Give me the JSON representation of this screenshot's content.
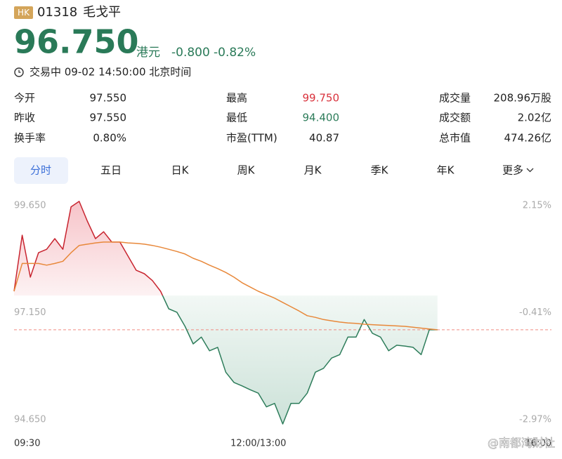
{
  "header": {
    "market": "HK",
    "code": "01318",
    "name": "毛戈平"
  },
  "quote": {
    "price": "96.750",
    "currency": "港元",
    "change": "-0.800",
    "change_pct": "-0.82%",
    "status": "交易中 09-02 14:50:00 北京时间"
  },
  "stats": [
    {
      "label": "今开",
      "value": "97.550"
    },
    {
      "label": "昨收",
      "value": "97.550"
    },
    {
      "label": "换手率",
      "value": "0.80%"
    },
    {
      "label": "最高",
      "value": "99.750",
      "color": "#d9323c"
    },
    {
      "label": "最低",
      "value": "94.400",
      "color": "#2e7d5b"
    },
    {
      "label": "市盈(TTM)",
      "value": "40.87"
    },
    {
      "label": "成交量",
      "value": "208.96万股"
    },
    {
      "label": "成交额",
      "value": "2.02亿"
    },
    {
      "label": "总市值",
      "value": "474.26亿"
    }
  ],
  "tabs": [
    "分时",
    "五日",
    "日K",
    "周K",
    "月K",
    "季K",
    "年K",
    "更多"
  ],
  "active_tab": 0,
  "watermark": "@南都湾财社",
  "chart_data": {
    "type": "line",
    "x": [
      0,
      5,
      10,
      15,
      20,
      25,
      30,
      35,
      40,
      45,
      50,
      55,
      60,
      65,
      70,
      75,
      80,
      85,
      90,
      95,
      100,
      105,
      110,
      115,
      120,
      125,
      130,
      135,
      140,
      145,
      150,
      155,
      160,
      165,
      170,
      175,
      180,
      185,
      190,
      195,
      200,
      205,
      210,
      215,
      220,
      225,
      230,
      235,
      240,
      245,
      250,
      255,
      260
    ],
    "series": [
      {
        "color": "#c8242f",
        "color_below": "#2e7d5b",
        "values": [
          97.65,
          98.96,
          97.98,
          98.55,
          98.63,
          98.88,
          98.63,
          99.62,
          99.75,
          99.29,
          98.88,
          99.04,
          98.8,
          98.8,
          98.47,
          98.14,
          98.06,
          97.9,
          97.65,
          97.24,
          97.16,
          96.83,
          96.42,
          96.58,
          96.26,
          96.34,
          95.76,
          95.52,
          95.44,
          95.35,
          95.27,
          94.95,
          95.03,
          94.55,
          95.03,
          95.03,
          95.27,
          95.76,
          95.85,
          96.09,
          96.17,
          96.58,
          96.58,
          96.99,
          96.67,
          96.58,
          96.26,
          96.39,
          96.37,
          96.34,
          96.17,
          96.75,
          96.75
        ]
      },
      {
        "color": "#e8883a",
        "values": [
          97.65,
          98.3,
          98.3,
          98.3,
          98.26,
          98.3,
          98.35,
          98.55,
          98.72,
          98.75,
          98.78,
          98.8,
          98.8,
          98.8,
          98.78,
          98.77,
          98.75,
          98.72,
          98.68,
          98.63,
          98.58,
          98.52,
          98.42,
          98.35,
          98.26,
          98.18,
          98.09,
          97.98,
          97.85,
          97.75,
          97.65,
          97.57,
          97.49,
          97.39,
          97.29,
          97.19,
          97.08,
          97.04,
          96.99,
          96.96,
          96.93,
          96.91,
          96.9,
          96.88,
          96.87,
          96.86,
          96.85,
          96.84,
          96.83,
          96.81,
          96.79,
          96.77,
          96.75
        ]
      }
    ],
    "xlim": [
      0,
      330
    ],
    "xticks": [
      {
        "value": 0,
        "label": "09:30"
      },
      {
        "value": 150,
        "label": "12:00/13:00"
      },
      {
        "value": 330,
        "label": "16:00"
      }
    ],
    "ylim": [
      94.65,
      99.65
    ],
    "yticks": [
      {
        "value": 94.65,
        "label": "94.650"
      },
      {
        "value": 97.15,
        "label": "97.150"
      },
      {
        "value": 99.65,
        "label": "99.650"
      }
    ],
    "y2lim": [
      -2.97,
      2.15
    ],
    "y2ticks": [
      {
        "value": -2.97,
        "label": "-2.97%"
      },
      {
        "value": -0.41,
        "label": "-0.41%"
      },
      {
        "value": 2.15,
        "label": "2.15%"
      }
    ]
  }
}
